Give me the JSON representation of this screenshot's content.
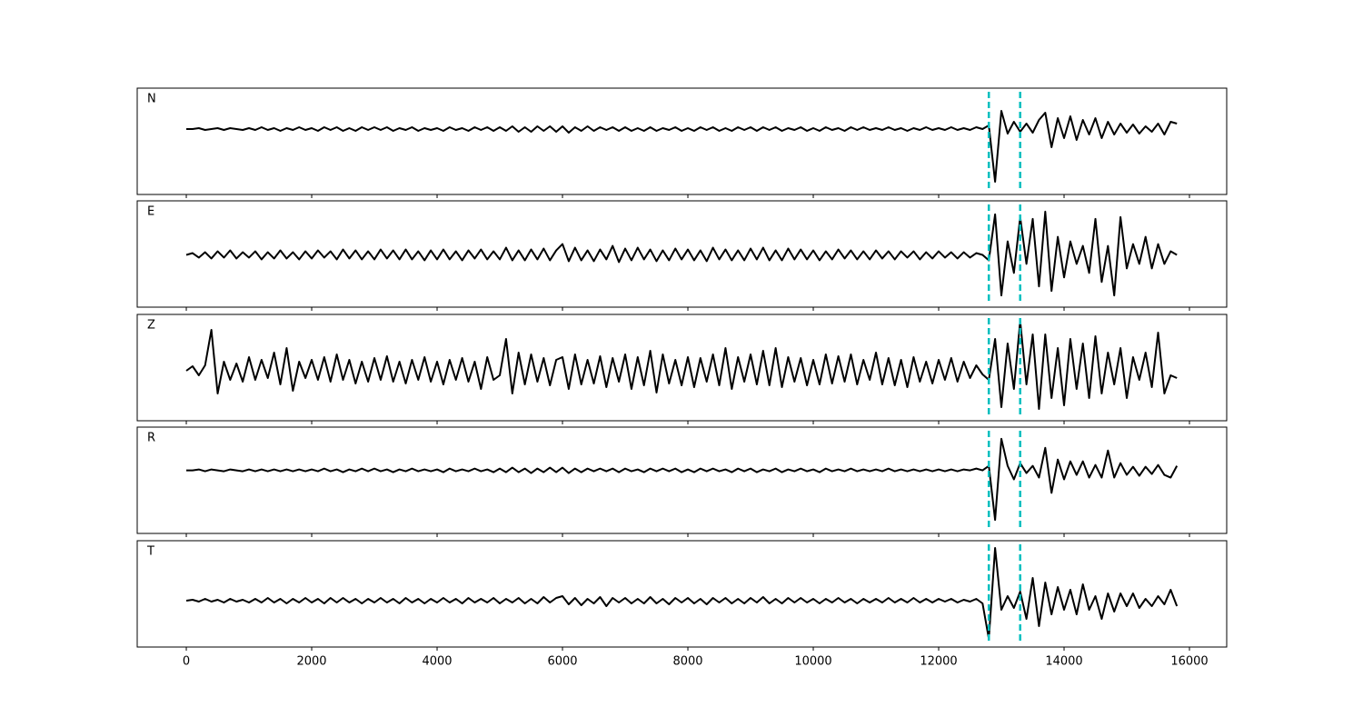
{
  "chart_data": {
    "type": "line",
    "x": [
      0,
      100,
      200,
      300,
      400,
      500,
      600,
      700,
      800,
      900,
      1000,
      1100,
      1200,
      1300,
      1400,
      1500,
      1600,
      1700,
      1800,
      1900,
      2000,
      2100,
      2200,
      2300,
      2400,
      2500,
      2600,
      2700,
      2800,
      2900,
      3000,
      3100,
      3200,
      3300,
      3400,
      3500,
      3600,
      3700,
      3800,
      3900,
      4000,
      4100,
      4200,
      4300,
      4400,
      4500,
      4600,
      4700,
      4800,
      4900,
      5000,
      5100,
      5200,
      5300,
      5400,
      5500,
      5600,
      5700,
      5800,
      5900,
      6000,
      6100,
      6200,
      6300,
      6400,
      6500,
      6600,
      6700,
      6800,
      6900,
      7000,
      7100,
      7200,
      7300,
      7400,
      7500,
      7600,
      7700,
      7800,
      7900,
      8000,
      8100,
      8200,
      8300,
      8400,
      8500,
      8600,
      8700,
      8800,
      8900,
      9000,
      9100,
      9200,
      9300,
      9400,
      9500,
      9600,
      9700,
      9800,
      9900,
      10000,
      10100,
      10200,
      10300,
      10400,
      10500,
      10600,
      10700,
      10800,
      10900,
      11000,
      11100,
      11200,
      11300,
      11400,
      11500,
      11600,
      11700,
      11800,
      11900,
      12000,
      12100,
      12200,
      12300,
      12400,
      12500,
      12600,
      12700,
      12800,
      12900,
      13000,
      13100,
      13200,
      13300,
      13400,
      13500,
      13600,
      13700,
      13800,
      13900,
      14000,
      14100,
      14200,
      14300,
      14400,
      14500,
      14600,
      14700,
      14800,
      14900,
      15000,
      15100,
      15200,
      15300,
      15400,
      15500,
      15600,
      15700,
      15800
    ],
    "xlim": [
      -783,
      16594
    ],
    "xticks": [
      0,
      2000,
      4000,
      6000,
      8000,
      10000,
      12000,
      14000,
      16000
    ],
    "vlines": [
      12800,
      13300
    ],
    "vline_color": "#00bfbf",
    "series": [
      {
        "name": "N",
        "color": "#000000",
        "ylim": [
          -72,
          45
        ],
        "values": [
          0,
          0,
          1,
          -1,
          0,
          1,
          -1,
          1,
          0,
          -1,
          1,
          -1,
          2,
          -1,
          1,
          -2,
          1,
          -1,
          2,
          -1,
          1,
          -2,
          2,
          -1,
          2,
          -2,
          1,
          -2,
          2,
          -1,
          2,
          -1,
          2,
          -2,
          1,
          -1,
          2,
          -2,
          1,
          -1,
          1,
          -2,
          2,
          -1,
          1,
          -2,
          2,
          -1,
          2,
          -2,
          2,
          -2,
          3,
          -3,
          2,
          -3,
          3,
          -2,
          3,
          -3,
          3,
          -4,
          2,
          -2,
          3,
          -2,
          2,
          -1,
          2,
          -2,
          2,
          -2,
          1,
          -2,
          2,
          -2,
          1,
          -1,
          2,
          -2,
          1,
          -2,
          2,
          -1,
          2,
          -2,
          1,
          -2,
          2,
          -1,
          2,
          -2,
          2,
          -1,
          2,
          -2,
          1,
          -1,
          2,
          -2,
          1,
          -2,
          2,
          -1,
          1,
          -2,
          2,
          -1,
          2,
          -1,
          1,
          -1,
          2,
          -1,
          1,
          -2,
          1,
          -1,
          2,
          -1,
          1,
          -1,
          2,
          -1,
          1,
          -1,
          2,
          0,
          4,
          -58,
          20,
          -5,
          8,
          -3,
          6,
          -4,
          10,
          18,
          -20,
          12,
          -10,
          14,
          -12,
          10,
          -6,
          12,
          -10,
          8,
          -6,
          6,
          -4,
          5,
          -5,
          3,
          -3,
          6,
          -6,
          8,
          6
        ]
      },
      {
        "name": "E",
        "color": "#000000",
        "ylim": [
          -58,
          60
        ],
        "values": [
          0,
          2,
          -3,
          3,
          -4,
          4,
          -3,
          5,
          -4,
          3,
          -3,
          4,
          -5,
          3,
          -4,
          5,
          -4,
          3,
          -5,
          4,
          -4,
          5,
          -3,
          4,
          -5,
          6,
          -4,
          5,
          -5,
          4,
          -5,
          6,
          -4,
          5,
          -5,
          6,
          -5,
          4,
          -6,
          5,
          -5,
          6,
          -5,
          4,
          -6,
          5,
          -4,
          6,
          -5,
          4,
          -5,
          8,
          -6,
          5,
          -6,
          6,
          -5,
          7,
          -6,
          5,
          12,
          -7,
          8,
          -6,
          5,
          -7,
          6,
          -5,
          10,
          -8,
          7,
          -6,
          8,
          -5,
          6,
          -7,
          5,
          -6,
          7,
          -5,
          6,
          -6,
          5,
          -7,
          8,
          -5,
          6,
          -6,
          5,
          -6,
          7,
          -5,
          8,
          -6,
          5,
          -6,
          7,
          -5,
          6,
          -5,
          5,
          -6,
          4,
          -5,
          6,
          -4,
          5,
          -5,
          4,
          -5,
          5,
          -4,
          4,
          -5,
          4,
          -3,
          4,
          -5,
          3,
          -4,
          4,
          -3,
          3,
          -4,
          3,
          -3,
          2,
          0,
          -6,
          45,
          -45,
          15,
          -20,
          42,
          -10,
          40,
          -35,
          48,
          -40,
          20,
          -25,
          15,
          -10,
          10,
          -20,
          40,
          -30,
          10,
          -45,
          42,
          -15,
          12,
          -10,
          20,
          -15,
          12,
          -10,
          4,
          0
        ]
      },
      {
        "name": "Z",
        "color": "#000000",
        "ylim": [
          -55,
          62
        ],
        "values": [
          0,
          5,
          -5,
          6,
          45,
          -25,
          10,
          -10,
          8,
          -12,
          15,
          -10,
          12,
          -8,
          20,
          -15,
          25,
          -22,
          10,
          -8,
          12,
          -10,
          15,
          -12,
          18,
          -10,
          12,
          -14,
          10,
          -12,
          14,
          -10,
          16,
          -12,
          10,
          -14,
          12,
          -10,
          15,
          -12,
          10,
          -15,
          12,
          -10,
          14,
          -12,
          10,
          -20,
          15,
          -10,
          -5,
          35,
          -25,
          20,
          -15,
          18,
          -12,
          14,
          -16,
          12,
          15,
          -20,
          18,
          -15,
          12,
          -14,
          16,
          -18,
          14,
          -12,
          18,
          -20,
          15,
          -16,
          22,
          -24,
          18,
          -14,
          12,
          -16,
          15,
          -18,
          14,
          -12,
          18,
          -16,
          25,
          -20,
          15,
          -12,
          18,
          -15,
          22,
          -16,
          25,
          -18,
          15,
          -12,
          14,
          -16,
          12,
          -15,
          18,
          -14,
          16,
          -12,
          18,
          -15,
          12,
          -10,
          20,
          -15,
          14,
          -16,
          12,
          -18,
          15,
          -12,
          10,
          -14,
          12,
          -10,
          14,
          -12,
          10,
          -8,
          6,
          -4,
          -10,
          35,
          -40,
          30,
          -20,
          55,
          -15,
          40,
          -42,
          40,
          -30,
          25,
          -38,
          35,
          -20,
          30,
          -30,
          38,
          -25,
          20,
          -15,
          25,
          -30,
          15,
          -10,
          20,
          -18,
          42,
          -25,
          -5,
          -8
        ]
      },
      {
        "name": "R",
        "color": "#000000",
        "ylim": [
          -70,
          48
        ],
        "values": [
          0,
          0,
          1,
          -1,
          1,
          0,
          -1,
          1,
          0,
          -1,
          1,
          -1,
          1,
          -1,
          1,
          -1,
          1,
          -1,
          1,
          -1,
          1,
          -1,
          2,
          -1,
          1,
          -2,
          1,
          -1,
          2,
          -1,
          2,
          -1,
          1,
          -2,
          1,
          -1,
          2,
          -1,
          1,
          -1,
          1,
          -2,
          2,
          -1,
          1,
          -1,
          2,
          -1,
          1,
          -2,
          2,
          -2,
          3,
          -2,
          2,
          -3,
          2,
          -2,
          3,
          -2,
          3,
          -3,
          2,
          -2,
          2,
          -1,
          2,
          -1,
          2,
          -2,
          2,
          -1,
          1,
          -2,
          2,
          -1,
          2,
          -1,
          2,
          -2,
          1,
          -2,
          2,
          -1,
          2,
          -1,
          1,
          -2,
          2,
          -1,
          2,
          -2,
          1,
          -1,
          2,
          -2,
          1,
          -1,
          2,
          -1,
          1,
          -2,
          2,
          -1,
          1,
          -1,
          2,
          -1,
          1,
          -1,
          1,
          -1,
          2,
          -1,
          1,
          -1,
          1,
          -1,
          1,
          -1,
          1,
          -1,
          1,
          -1,
          1,
          0,
          2,
          0,
          5,
          -55,
          35,
          5,
          -10,
          8,
          -3,
          5,
          -8,
          25,
          -25,
          12,
          -10,
          10,
          -5,
          10,
          -8,
          6,
          -8,
          22,
          -8,
          8,
          -5,
          4,
          -6,
          4,
          -4,
          6,
          -5,
          -8,
          5
        ]
      },
      {
        "name": "T",
        "color": "#000000",
        "ylim": [
          -51,
          66
        ],
        "values": [
          0,
          1,
          -1,
          2,
          -1,
          1,
          -2,
          2,
          -1,
          1,
          -2,
          2,
          -2,
          3,
          -2,
          2,
          -3,
          2,
          -2,
          3,
          -2,
          2,
          -3,
          3,
          -2,
          3,
          -2,
          2,
          -3,
          2,
          -2,
          3,
          -2,
          2,
          -3,
          3,
          -2,
          2,
          -3,
          2,
          -2,
          3,
          -2,
          2,
          -3,
          3,
          -2,
          2,
          -2,
          3,
          -3,
          2,
          -2,
          3,
          -3,
          2,
          -3,
          4,
          -2,
          3,
          5,
          -4,
          3,
          -5,
          2,
          -3,
          4,
          -6,
          3,
          -2,
          3,
          -3,
          2,
          -3,
          4,
          -3,
          2,
          -4,
          3,
          -2,
          3,
          -3,
          2,
          -4,
          3,
          -2,
          3,
          -3,
          2,
          -3,
          3,
          -2,
          4,
          -3,
          2,
          -3,
          3,
          -2,
          3,
          -2,
          2,
          -3,
          2,
          -2,
          3,
          -2,
          2,
          -3,
          2,
          -2,
          2,
          -2,
          3,
          -2,
          2,
          -2,
          3,
          -2,
          2,
          -2,
          2,
          -1,
          2,
          -2,
          1,
          -1,
          2,
          -3,
          -42,
          58,
          -10,
          5,
          -8,
          10,
          -20,
          25,
          -28,
          20,
          -15,
          15,
          -10,
          12,
          -15,
          18,
          -10,
          5,
          -20,
          8,
          -12,
          8,
          -6,
          8,
          -8,
          2,
          -6,
          5,
          -4,
          12,
          -6
        ]
      }
    ]
  }
}
